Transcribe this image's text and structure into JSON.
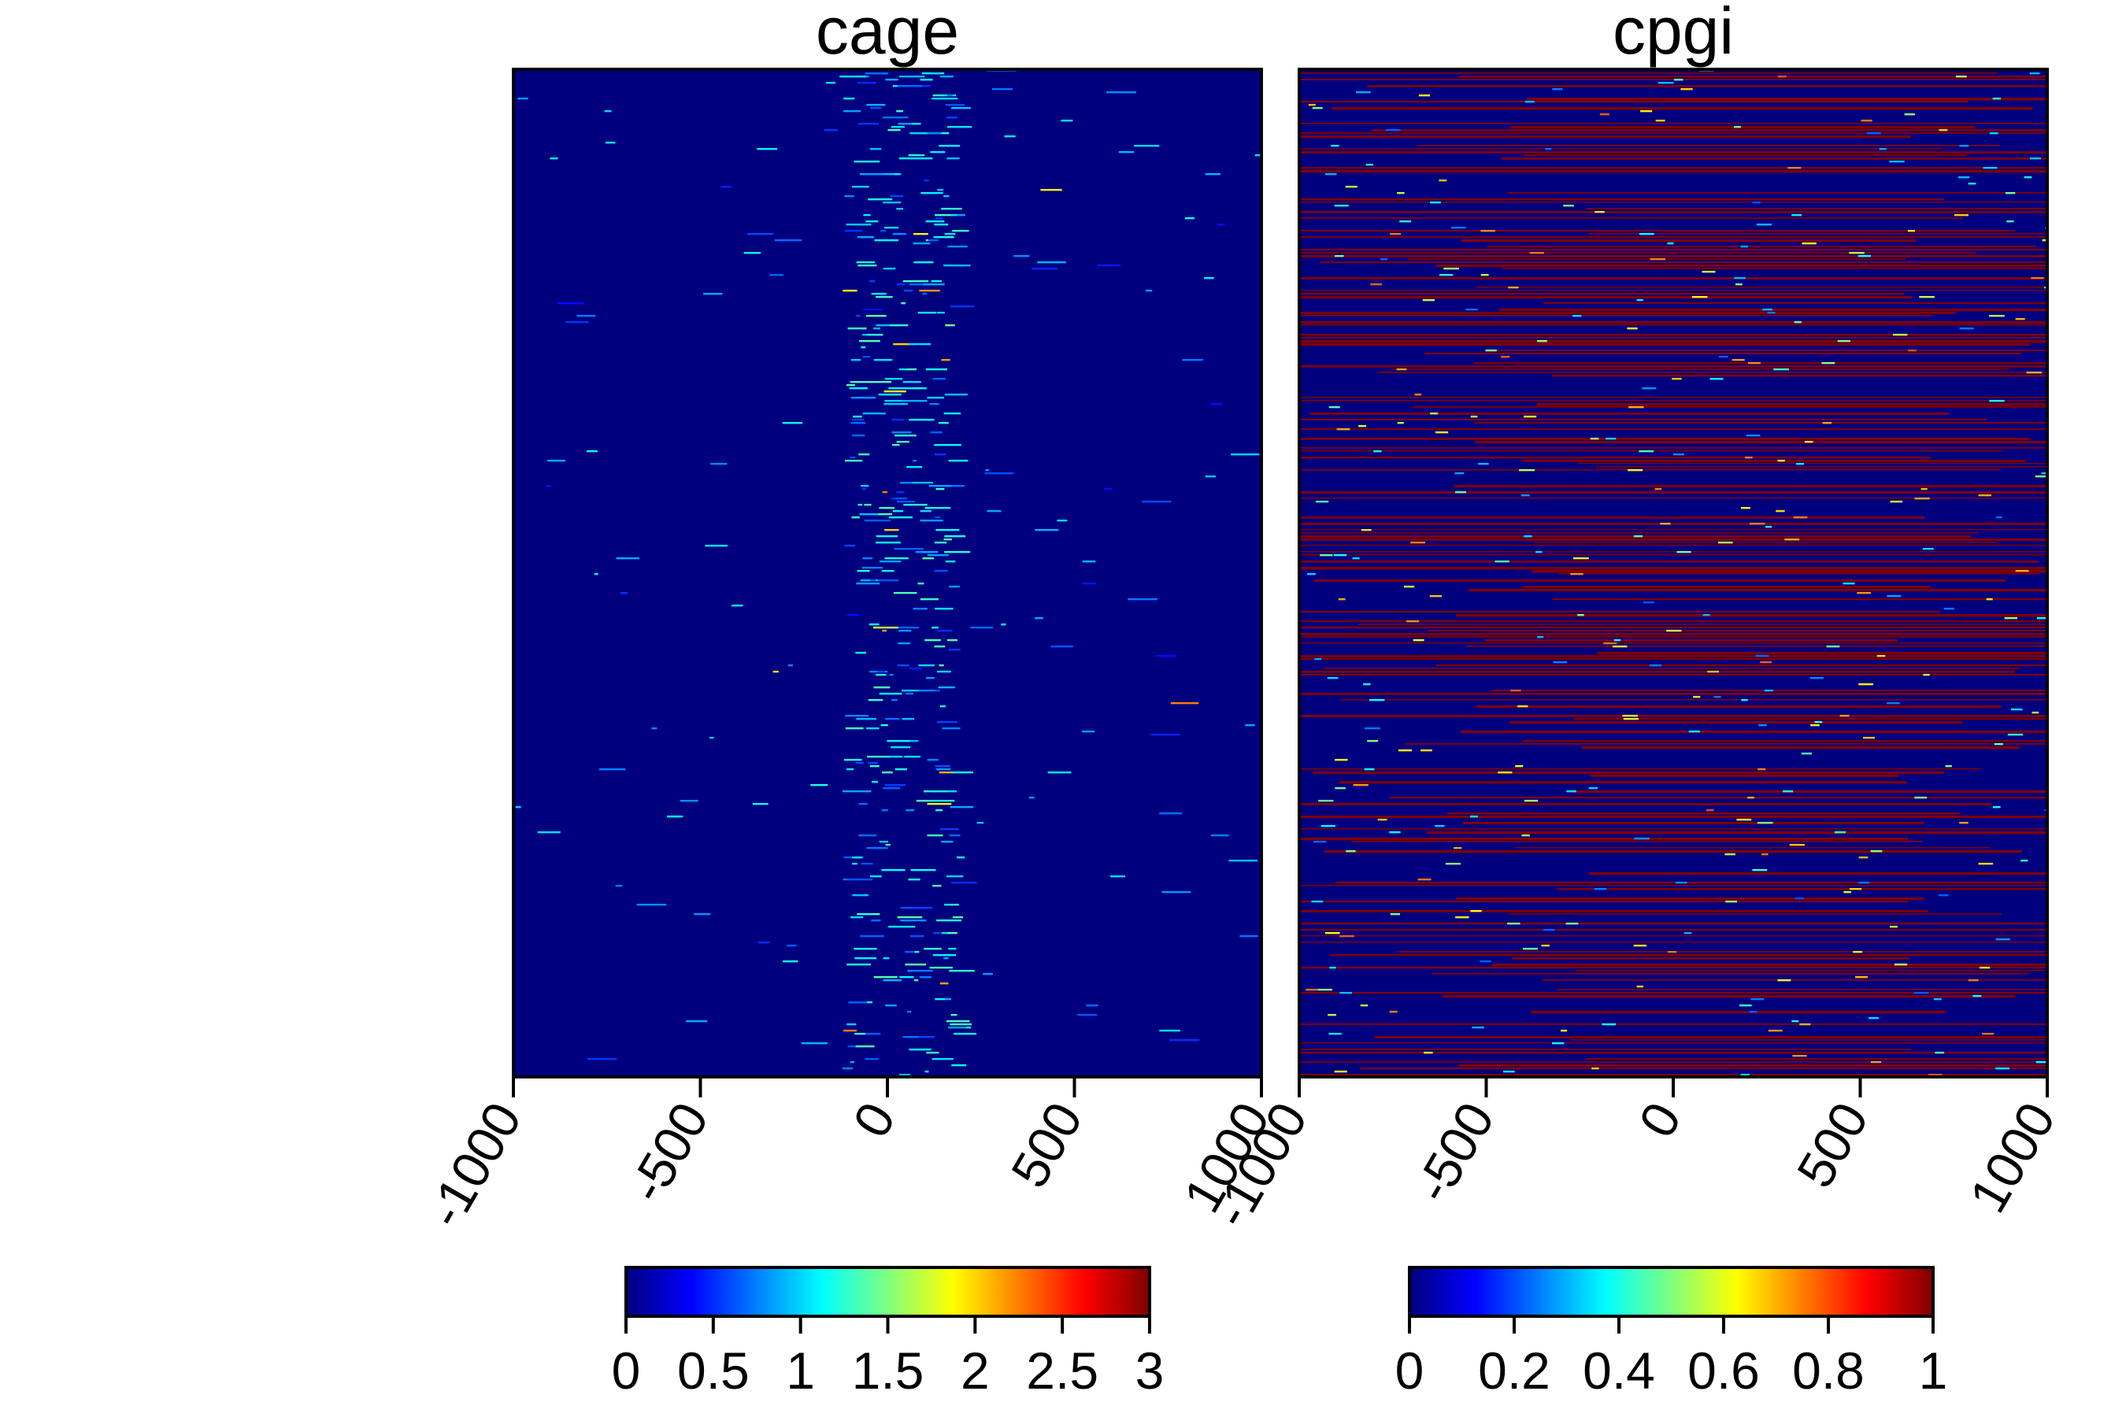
{
  "chart_data": [
    {
      "type": "heatmap",
      "title": "cage",
      "xlabel": "",
      "ylabel": "",
      "xlim": [
        -1000,
        1000
      ],
      "x_ticks": [
        -1000,
        -500,
        0,
        500,
        1000
      ],
      "x_tick_labels": [
        "-1000",
        "-500",
        "0",
        "500",
        "1000"
      ],
      "rows_approx": 320,
      "description_of_values": "sparse signal, concentrated around 0 to 100",
      "peak_center": 30,
      "peak_halfwidth": 150,
      "background_density": 0.012,
      "colorbar": {
        "min": 0,
        "max": 3,
        "ticks": [
          0,
          0.5,
          1,
          1.5,
          2,
          2.5,
          3
        ],
        "tick_labels": [
          "0",
          "0.5",
          "1",
          "1.5",
          "2",
          "2.5",
          "3"
        ],
        "colormap": [
          "#00007F",
          "#0000FF",
          "#007FFF",
          "#00FFFF",
          "#7FFF7F",
          "#FFFF00",
          "#FF7F00",
          "#FF0000",
          "#7F0000"
        ]
      }
    },
    {
      "type": "heatmap",
      "title": "cpgi",
      "xlabel": "",
      "ylabel": "",
      "xlim": [
        -1000,
        1000
      ],
      "x_ticks": [
        -1000,
        -500,
        0,
        500,
        1000
      ],
      "x_tick_labels": [
        "-1000",
        "-500",
        "0",
        "500",
        "1000"
      ],
      "rows_approx": 320,
      "description_of_values": "many rows at value 1 (dark red) spanning wide intervals, denser between -200 and 600",
      "dense_region": [
        -200,
        600
      ],
      "colorbar": {
        "min": 0,
        "max": 1,
        "ticks": [
          0,
          0.2,
          0.4,
          0.6,
          0.8,
          1
        ],
        "tick_labels": [
          "0",
          "0.2",
          "0.4",
          "0.6",
          "0.8",
          "1"
        ],
        "colormap": [
          "#00007F",
          "#0000FF",
          "#007FFF",
          "#00FFFF",
          "#7FFF7F",
          "#FFFF00",
          "#FF7F00",
          "#FF0000",
          "#7F0000"
        ]
      }
    }
  ]
}
